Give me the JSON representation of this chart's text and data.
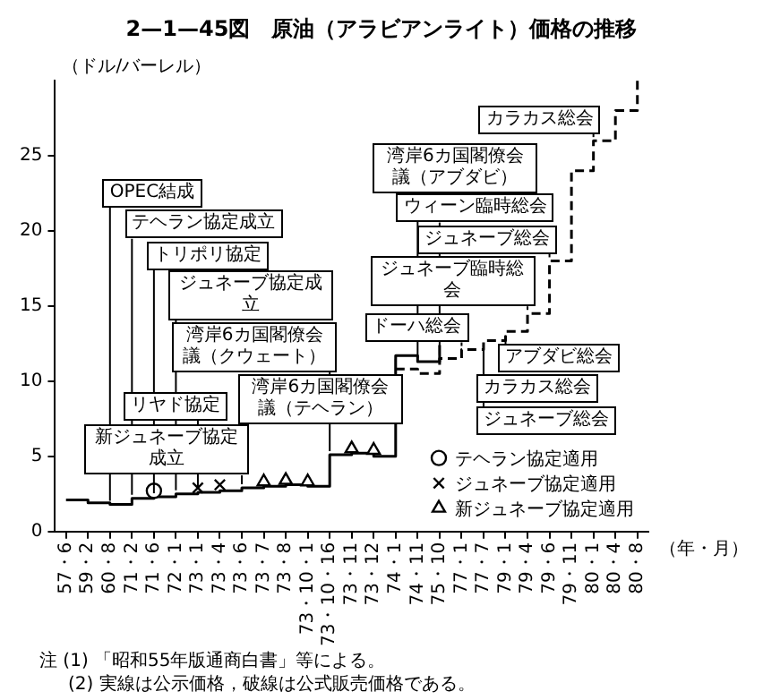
{
  "chart_data": {
    "type": "step",
    "title": "2—1—45図　原油（アラビアンライト）価格の推移",
    "ylabel": "（ドル/バーレル）",
    "xlabel": "（年・月）",
    "categories": [
      "57・6",
      "59・2",
      "60・8",
      "71・2",
      "71・6",
      "72・1",
      "73・1",
      "73・4",
      "73・6",
      "73・7",
      "73・8",
      "73・10・1",
      "73・10・16",
      "73・11",
      "73・12",
      "74・1",
      "74・11",
      "75・10",
      "77・1",
      "77・7",
      "79・1",
      "79・4",
      "79・6",
      "79・11",
      "80・1",
      "80・4",
      "80・8"
    ],
    "ylim": [
      0,
      30
    ],
    "yticks": [
      0,
      5,
      10,
      15,
      20,
      25
    ],
    "legend": "bottom right",
    "series": [
      {
        "color": "#000000",
        "line_style": "solid",
        "marker": "none",
        "values": [
          2.1,
          1.9,
          1.8,
          2.2,
          2.3,
          2.5,
          2.6,
          2.7,
          2.9,
          3.0,
          3.1,
          3.0,
          5.1,
          5.2,
          5.0,
          11.7,
          11.3,
          12.4,
          null,
          null,
          null,
          null,
          null,
          null,
          null,
          null,
          null
        ]
      },
      {
        "color": "#000000",
        "line_style": "dashed",
        "marker": "none",
        "values": [
          null,
          null,
          null,
          null,
          null,
          null,
          null,
          null,
          null,
          null,
          null,
          null,
          null,
          null,
          null,
          10.8,
          10.5,
          11.5,
          12.1,
          12.7,
          13.3,
          14.5,
          18.0,
          24.0,
          26.0,
          28.0,
          30.0
        ]
      },
      {
        "type": "scatter",
        "name": "テヘラン協定適用",
        "color": "#000000",
        "marker": "circle",
        "x": [
          "71・6"
        ],
        "values": [
          2.7
        ]
      },
      {
        "type": "scatter",
        "name": "ジュネーブ協定適用",
        "color": "#000000",
        "marker": "cross",
        "x": [
          "73・1",
          "73・4"
        ],
        "values": [
          2.9,
          3.1
        ]
      },
      {
        "type": "scatter",
        "name": "新ジュネーブ協定適用",
        "color": "#000000",
        "marker": "triangle",
        "x": [
          "73・7",
          "73・8",
          "73・10・1",
          "73・11",
          "73・12"
        ],
        "values": [
          3.3,
          3.4,
          3.3,
          5.5,
          5.4
        ]
      }
    ],
    "annotations": [
      {
        "text": "OPEC結成",
        "x": "60・8",
        "y": 1.8
      },
      {
        "text": "テヘラン協定成立",
        "x": "71・2",
        "y": 2.2
      },
      {
        "text": "トリポリ協定",
        "x": "71・6",
        "y": 2.3
      },
      {
        "text": "ジュネーブ協定成立",
        "x": "72・1",
        "y": 2.5
      },
      {
        "text": "リヤド協定",
        "x": "73・1",
        "y": 2.6
      },
      {
        "text": "新ジュネーブ協定成立",
        "x": "73・6",
        "y": 2.9
      },
      {
        "text": "湾岸6カ国閣僚会議（クウェート）",
        "x": "73・10・16",
        "y": 5.1
      },
      {
        "text": "湾岸6カ国閣僚会議（テヘラン）",
        "x": "74・1",
        "y": 11.7
      },
      {
        "text": "湾岸6カ国閣僚会議（アブダビ）",
        "x": "74・11",
        "y": 11.3
      },
      {
        "text": "ウィーン臨時総会",
        "x": "75・10",
        "y": 11.5
      },
      {
        "text": "ドーハ総会",
        "x": "77・1",
        "y": 12.1
      },
      {
        "text": "カラカス総会",
        "x": "77・7",
        "y": 12.7
      },
      {
        "text": "ジュネーブ総会",
        "x": "77・7",
        "y": 12.7
      },
      {
        "text": "アブダビ総会",
        "x": "79・1",
        "y": 13.3
      },
      {
        "text": "ジュネーブ臨時総会",
        "x": "79・4",
        "y": 14.5
      },
      {
        "text": "ジュネーブ総会",
        "x": "79・6",
        "y": 18.0
      },
      {
        "text": "カラカス総会",
        "x": "80・1",
        "y": 26.0
      },
      "注 (1) 「昭和55年版通商白書」等による。",
      "(2) 実線は公示価格，破線は公式販売価格である。"
    ]
  }
}
